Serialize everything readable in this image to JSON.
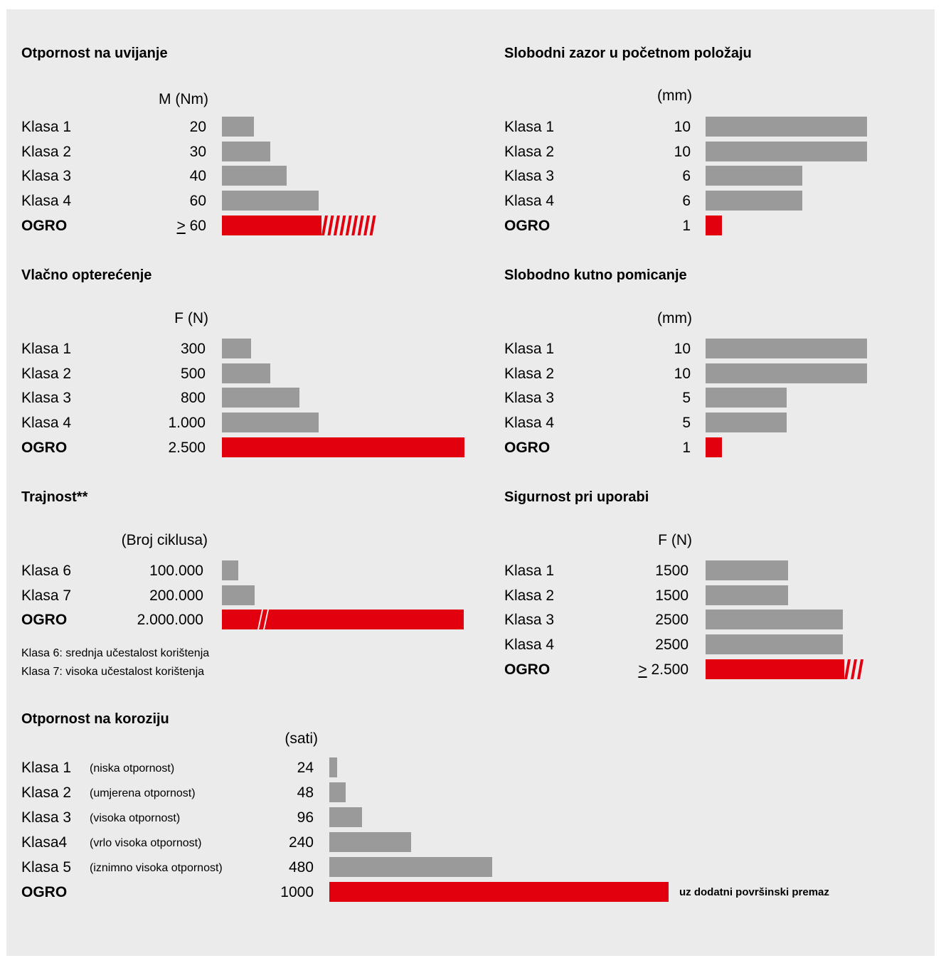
{
  "colors": {
    "gray_bar": "#9a9a9a",
    "ogro_bar": "#e2000f",
    "panel": "#ebebeb"
  },
  "chart_data": [
    {
      "type": "bar",
      "title": "Otpornost na uvijanje",
      "unit": "M (Nm)",
      "categories": [
        "Klasa 1",
        "Klasa 2",
        "Klasa 3",
        "Klasa 4",
        "OGRO"
      ],
      "values": [
        20,
        30,
        40,
        60,
        60
      ],
      "value_labels": [
        "20",
        "30",
        "40",
        "60",
        "≥ 60"
      ],
      "highlight": "OGRO",
      "ogro_bar_broken": true
    },
    {
      "type": "bar",
      "title": "Slobodni zazor u početnom položaju",
      "unit": "(mm)",
      "categories": [
        "Klasa 1",
        "Klasa 2",
        "Klasa 3",
        "Klasa 4",
        "OGRO"
      ],
      "values": [
        10,
        10,
        6,
        6,
        1
      ],
      "value_labels": [
        "10",
        "10",
        "6",
        "6",
        "1"
      ],
      "highlight": "OGRO"
    },
    {
      "type": "bar",
      "title": "Vlačno opterećenje",
      "unit": "F (N)",
      "categories": [
        "Klasa 1",
        "Klasa 2",
        "Klasa 3",
        "Klasa 4",
        "OGRO"
      ],
      "values": [
        300,
        500,
        800,
        1000,
        2500
      ],
      "value_labels": [
        "300",
        "500",
        "800",
        "1.000",
        "2.500"
      ],
      "highlight": "OGRO"
    },
    {
      "type": "bar",
      "title": "Slobodno kutno pomicanje",
      "unit": "(mm)",
      "categories": [
        "Klasa 1",
        "Klasa 2",
        "Klasa 3",
        "Klasa 4",
        "OGRO"
      ],
      "values": [
        10,
        10,
        5,
        5,
        1
      ],
      "value_labels": [
        "10",
        "10",
        "5",
        "5",
        "1"
      ],
      "highlight": "OGRO"
    },
    {
      "type": "bar",
      "title": "Trajnost**",
      "unit": "(Broj ciklusa)",
      "categories": [
        "Klasa 6",
        "Klasa 7",
        "OGRO"
      ],
      "values": [
        100000,
        200000,
        2000000
      ],
      "value_labels": [
        "100.000",
        "200.000",
        "2.000.000"
      ],
      "highlight": "OGRO",
      "ogro_bar_broken": true,
      "notes": [
        "Klasa 6: srednja učestalost korištenja",
        "Klasa 7: visoka učestalost korištenja"
      ]
    },
    {
      "type": "bar",
      "title": "Sigurnost pri uporabi",
      "unit": "F (N)",
      "categories": [
        "Klasa 1",
        "Klasa 2",
        "Klasa 3",
        "Klasa 4",
        "OGRO"
      ],
      "values": [
        1500,
        1500,
        2500,
        2500,
        2500
      ],
      "value_labels": [
        "1500",
        "1500",
        "2500",
        "2500",
        "≥ 2.500"
      ],
      "highlight": "OGRO",
      "ogro_bar_broken": true
    },
    {
      "type": "bar",
      "title": "Otpornost na koroziju",
      "unit": "(sati)",
      "categories": [
        "Klasa 1",
        "Klasa 2",
        "Klasa 3",
        "Klasa4",
        "Klasa 5",
        "OGRO"
      ],
      "sublabels": [
        "(niska otpornost)",
        "(umjerena otpornost)",
        "(visoka otpornost)",
        "(vrlo visoka otpornost)",
        "(iznimno visoka otpornost)",
        ""
      ],
      "values": [
        24,
        48,
        96,
        240,
        480,
        1000
      ],
      "value_labels": [
        "24",
        "48",
        "96",
        "240",
        "480",
        "1000"
      ],
      "highlight": "OGRO",
      "annotation": "uz dodatni površinski premaz"
    }
  ]
}
